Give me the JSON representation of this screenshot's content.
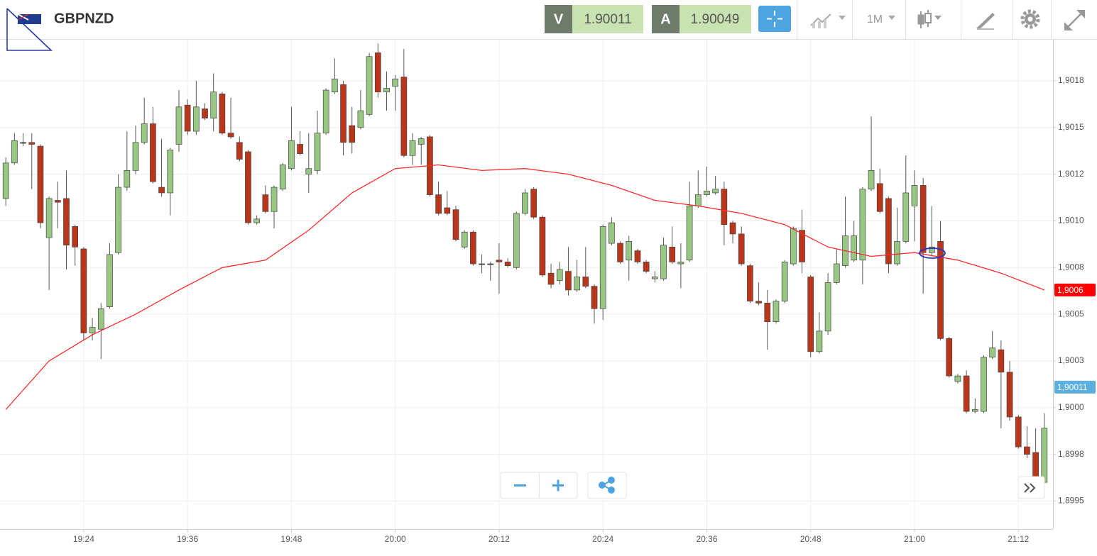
{
  "toolbar": {
    "symbol": "GBPNZD",
    "bid_label": "V",
    "bid": 1.90011,
    "ask_label": "A",
    "ask": 1.90049,
    "timeframe": "1M"
  },
  "chart_data": {
    "type": "candlestick",
    "x": [
      "19:15",
      "19:16",
      "19:17",
      "19:18",
      "19:19",
      "19:20",
      "19:21",
      "19:22",
      "19:23",
      "19:24",
      "19:25",
      "19:26",
      "19:27",
      "19:28",
      "19:29",
      "19:30",
      "19:31",
      "19:32",
      "19:33",
      "19:34",
      "19:35",
      "19:36",
      "19:37",
      "19:38",
      "19:39",
      "19:40",
      "19:41",
      "19:42",
      "19:43",
      "19:44",
      "19:45",
      "19:46",
      "19:47",
      "19:48",
      "19:49",
      "19:50",
      "19:51",
      "19:52",
      "19:53",
      "19:54",
      "19:55",
      "19:56",
      "19:57",
      "19:58",
      "19:59",
      "20:00",
      "20:01",
      "20:02",
      "20:03",
      "20:04",
      "20:05",
      "20:06",
      "20:07",
      "20:08",
      "20:09",
      "20:10",
      "20:11",
      "20:12",
      "20:13",
      "20:14",
      "20:15",
      "20:16",
      "20:17",
      "20:18",
      "20:19",
      "20:20",
      "20:21",
      "20:22",
      "20:23",
      "20:24",
      "20:25",
      "20:26",
      "20:27",
      "20:28",
      "20:29",
      "20:30",
      "20:31",
      "20:32",
      "20:33",
      "20:34",
      "20:35",
      "20:36",
      "20:37",
      "20:38",
      "20:39",
      "20:40",
      "20:41",
      "20:42",
      "20:43",
      "20:44",
      "20:45",
      "20:46",
      "20:47",
      "20:48",
      "20:49",
      "20:50",
      "20:51",
      "20:52",
      "20:53",
      "20:54",
      "20:55",
      "20:56",
      "20:57",
      "20:58",
      "20:59",
      "21:00",
      "21:01",
      "21:02",
      "21:03",
      "21:04",
      "21:05",
      "21:06",
      "21:07",
      "21:08",
      "21:09",
      "21:10",
      "21:11",
      "21:12",
      "21:13",
      "21:14",
      "21:15"
    ],
    "open": [
      1.90112,
      1.90131,
      1.90142,
      1.90142,
      1.9014,
      1.90091,
      1.90111,
      1.90112,
      1.90097,
      1.90085,
      1.9004,
      1.90042,
      1.90054,
      1.90083,
      1.90118,
      1.90127,
      1.90142,
      1.90152,
      1.90118,
      1.90115,
      1.90141,
      1.90162,
      1.90148,
      1.9016,
      1.90155,
      1.90168,
      1.90147,
      1.90142,
      1.90137,
      1.90099,
      1.90114,
      1.90105,
      1.90117,
      1.90128,
      1.90141,
      1.90125,
      1.90127,
      1.90147,
      1.90169,
      1.90173,
      1.90151,
      1.9015,
      1.90157,
      1.9019,
      1.90169,
      1.90172,
      1.90177,
      1.90135,
      1.90141,
      1.90145,
      1.90114,
      1.90107,
      1.90106,
      1.90086,
      1.90094,
      1.90077,
      1.90077,
      1.90079,
      1.90078,
      1.90075,
      1.90104,
      1.90117,
      1.90102,
      1.90072,
      1.90068,
      1.90073,
      1.90063,
      1.9007,
      1.90065,
      1.90053,
      1.90088,
      1.90088,
      1.90079,
      1.90084,
      1.90078,
      1.90069,
      1.90069,
      1.90086,
      1.90077,
      1.90079,
      1.90108,
      1.90114,
      1.90115,
      1.90117,
      1.90099,
      1.90093,
      1.90076,
      1.90057,
      1.90056,
      1.90046,
      1.90057,
      1.90077,
      1.90095,
      1.9007,
      1.9003,
      1.90041,
      1.90067,
      1.90076,
      1.90079,
      1.90079,
      1.90117,
      1.9012,
      1.90112,
      1.90077,
      1.90089,
      1.90108,
      1.90119,
      1.90083,
      1.90089,
      1.90037,
      1.90014,
      1.90017,
      1.89998,
      1.89998,
      1.90027,
      1.90031,
      1.90019,
      1.89995,
      1.89979,
      1.89976,
      1.8996
    ],
    "high": [
      1.90134,
      1.90147,
      1.90147,
      1.90147,
      1.90141,
      1.90113,
      1.90121,
      1.90127,
      1.90098,
      1.90086,
      1.90048,
      1.90056,
      1.90088,
      1.90125,
      1.90148,
      1.90151,
      1.90166,
      1.90161,
      1.90144,
      1.90139,
      1.9017,
      1.90165,
      1.90175,
      1.90163,
      1.90179,
      1.90169,
      1.90166,
      1.90145,
      1.90138,
      1.90103,
      1.90119,
      1.90119,
      1.90131,
      1.90161,
      1.90148,
      1.90147,
      1.90159,
      1.90171,
      1.90187,
      1.90175,
      1.90161,
      1.9017,
      1.9019,
      1.90195,
      1.9018,
      1.90178,
      1.90192,
      1.90147,
      1.90145,
      1.90146,
      1.90121,
      1.90116,
      1.90108,
      1.90095,
      1.90095,
      1.90082,
      1.90078,
      1.90088,
      1.9008,
      1.90105,
      1.90117,
      1.90118,
      1.90103,
      1.90077,
      1.90078,
      1.90086,
      1.90079,
      1.90086,
      1.90066,
      1.90098,
      1.90102,
      1.90089,
      1.90092,
      1.90085,
      1.90079,
      1.90073,
      1.90091,
      1.90097,
      1.90088,
      1.90121,
      1.90127,
      1.90129,
      1.90124,
      1.90121,
      1.901,
      1.90097,
      1.90077,
      1.90067,
      1.90063,
      1.90058,
      1.90079,
      1.90097,
      1.90106,
      1.90071,
      1.90051,
      1.90072,
      1.90085,
      1.90113,
      1.901,
      1.90118,
      1.90156,
      1.90128,
      1.90113,
      1.90107,
      1.90135,
      1.90127,
      1.90123,
      1.90108,
      1.901,
      1.90038,
      1.90018,
      1.9002,
      1.90005,
      1.90028,
      1.90041,
      1.90036,
      1.90025,
      1.89996,
      1.8999,
      1.89989,
      1.89997
    ],
    "low": [
      1.90108,
      1.9013,
      1.9014,
      1.90117,
      1.90096,
      1.90063,
      1.90096,
      1.90074,
      1.90076,
      1.90036,
      1.90036,
      1.90026,
      1.90053,
      1.90082,
      1.90116,
      1.90125,
      1.90141,
      1.9012,
      1.90113,
      1.90103,
      1.90137,
      1.90146,
      1.90146,
      1.90154,
      1.90148,
      1.90146,
      1.90144,
      1.90132,
      1.90098,
      1.90098,
      1.90104,
      1.90096,
      1.90116,
      1.90127,
      1.90135,
      1.90115,
      1.90125,
      1.90146,
      1.90168,
      1.90135,
      1.90136,
      1.90149,
      1.90156,
      1.90166,
      1.90159,
      1.90159,
      1.90134,
      1.9013,
      1.9013,
      1.90113,
      1.90103,
      1.90103,
      1.90089,
      1.90085,
      1.90076,
      1.90072,
      1.90068,
      1.90061,
      1.90075,
      1.90074,
      1.90103,
      1.90101,
      1.9007,
      1.90064,
      1.90066,
      1.9006,
      1.90062,
      1.90064,
      1.90045,
      1.90047,
      1.90087,
      1.90077,
      1.90068,
      1.90077,
      1.90072,
      1.90067,
      1.90068,
      1.90077,
      1.90064,
      1.90078,
      1.90107,
      1.90113,
      1.90114,
      1.90087,
      1.90088,
      1.90076,
      1.90056,
      1.90055,
      1.90031,
      1.90045,
      1.90056,
      1.90076,
      1.90072,
      1.90027,
      1.90029,
      1.90039,
      1.90066,
      1.90075,
      1.90078,
      1.90066,
      1.90116,
      1.90104,
      1.90072,
      1.90076,
      1.90088,
      1.90089,
      1.90061,
      1.90081,
      1.90036,
      1.90016,
      1.90013,
      1.89997,
      1.89997,
      1.89997,
      1.90026,
      1.89989,
      1.89993,
      1.89978,
      1.89973,
      1.89961,
      1.89952
    ],
    "close": [
      1.90131,
      1.90143,
      1.90142,
      1.90141,
      1.90099,
      1.90112,
      1.9011,
      1.90087,
      1.90086,
      1.9004,
      1.90043,
      1.90053,
      1.90082,
      1.90118,
      1.90127,
      1.90142,
      1.90152,
      1.90121,
      1.90115,
      1.90138,
      1.90161,
      1.90148,
      1.90161,
      1.90155,
      1.90169,
      1.90147,
      1.90145,
      1.90133,
      1.90099,
      1.90101,
      1.90105,
      1.90118,
      1.9013,
      1.90143,
      1.90136,
      1.90128,
      1.90147,
      1.9017,
      1.90176,
      1.90142,
      1.90142,
      1.90159,
      1.90188,
      1.90169,
      1.90171,
      1.90176,
      1.90135,
      1.90143,
      1.90144,
      1.90114,
      1.90104,
      1.90104,
      1.9009,
      1.90094,
      1.90077,
      1.90077,
      1.90077,
      1.90078,
      1.90076,
      1.90104,
      1.90115,
      1.90102,
      1.90071,
      1.90066,
      1.90074,
      1.90063,
      1.9007,
      1.90065,
      1.90053,
      1.90097,
      1.90099,
      1.90078,
      1.90089,
      1.90078,
      1.90073,
      1.9007,
      1.90087,
      1.90078,
      1.90078,
      1.90108,
      1.90114,
      1.90116,
      1.90117,
      1.90098,
      1.90093,
      1.90077,
      1.90057,
      1.90056,
      1.90046,
      1.90057,
      1.90078,
      1.90096,
      1.90078,
      1.9003,
      1.90041,
      1.90067,
      1.90077,
      1.90092,
      1.90092,
      1.90117,
      1.90127,
      1.90105,
      1.90077,
      1.90089,
      1.90115,
      1.90119,
      1.90083,
      1.90086,
      1.90037,
      1.90017,
      1.90017,
      1.89998,
      1.89999,
      1.90027,
      1.90032,
      1.90019,
      1.89995,
      1.89979,
      1.89975,
      1.89963,
      1.89989
    ],
    "up_color": "#98c784",
    "down_color": "#b9361b",
    "ma": {
      "color": "#ff2a2a",
      "x": [
        "19:15",
        "19:20",
        "19:25",
        "19:30",
        "19:35",
        "19:40",
        "19:45",
        "19:50",
        "19:55",
        "20:00",
        "20:05",
        "20:10",
        "20:15",
        "20:20",
        "20:25",
        "20:30",
        "20:35",
        "20:40",
        "20:45",
        "20:50",
        "20:55",
        "21:00",
        "21:05",
        "21:10",
        "21:15"
      ],
      "values": [
        1.89999,
        1.90025,
        1.90039,
        1.9005,
        1.90063,
        1.90075,
        1.90079,
        1.90095,
        1.90115,
        1.90128,
        1.9013,
        1.90127,
        1.90128,
        1.90125,
        1.90119,
        1.90111,
        1.90108,
        1.90104,
        1.90098,
        1.90086,
        1.90081,
        1.90083,
        1.90079,
        1.90072,
        1.90063
      ]
    },
    "ma_marker": {
      "value": 1.90063,
      "label": "1,9006",
      "color": "#ff0000"
    },
    "price_marker": {
      "value": 1.90011,
      "label": "1,90011",
      "color": "#5aafdf"
    },
    "xlim": [
      "19:14",
      "21:16"
    ],
    "xticks": [
      "19:24",
      "19:36",
      "19:48",
      "20:00",
      "20:12",
      "20:24",
      "20:36",
      "20:48",
      "21:00",
      "21:12"
    ],
    "ylim": [
      1.89935,
      1.90197
    ],
    "yticks": [
      {
        "value": 1.90175,
        "label": "1,9018"
      },
      {
        "value": 1.9015,
        "label": "1,9015"
      },
      {
        "value": 1.90125,
        "label": "1,9012"
      },
      {
        "value": 1.901,
        "label": "1,9010"
      },
      {
        "value": 1.90075,
        "label": "1,9008"
      },
      {
        "value": 1.9005,
        "label": "1,9005"
      },
      {
        "value": 1.90025,
        "label": "1,9003"
      },
      {
        "value": 1.9,
        "label": "1,9000"
      },
      {
        "value": 1.89975,
        "label": "1,8998"
      },
      {
        "value": 1.8995,
        "label": "1,8995"
      }
    ],
    "grid": true
  }
}
